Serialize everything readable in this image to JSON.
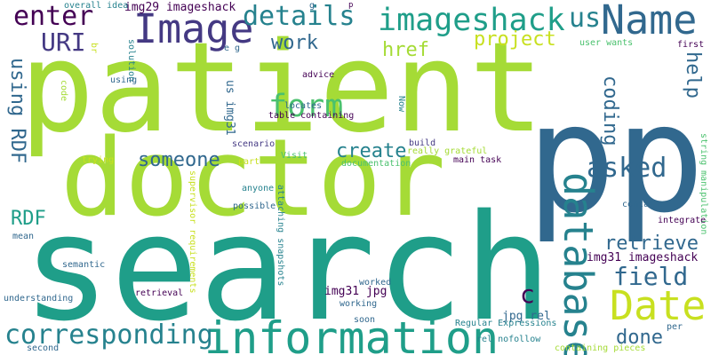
{
  "colors": {
    "background": "#ffffff",
    "lime": "#a5db36",
    "yellow_green": "#c8e020",
    "green": "#4ac16d",
    "teal": "#1f9e89",
    "teal_blue": "#26828e",
    "blue": "#31688e",
    "indigo": "#443983",
    "purple": "#440154"
  },
  "words": [
    {
      "text": "patient",
      "color": "#a5db36",
      "vertical": false
    },
    {
      "text": "search",
      "color": "#1f9e89",
      "vertical": false
    },
    {
      "text": "doctor",
      "color": "#a5db36",
      "vertical": false
    },
    {
      "text": "p",
      "color": "#31688e",
      "vertical": false
    },
    {
      "text": "p",
      "color": "#31688e",
      "vertical": false
    },
    {
      "text": "Image",
      "color": "#443983",
      "vertical": false
    },
    {
      "text": "Name",
      "color": "#31688e",
      "vertical": false
    },
    {
      "text": "information",
      "color": "#1f9e89",
      "vertical": false
    },
    {
      "text": "imageshack",
      "color": "#1f9e89",
      "vertical": false
    },
    {
      "text": "database",
      "color": "#26828e",
      "vertical": true
    },
    {
      "text": "Date",
      "color": "#c8e020",
      "vertical": false
    },
    {
      "text": "corresponding",
      "color": "#26828e",
      "vertical": false
    },
    {
      "text": "form",
      "color": "#4ac16d",
      "vertical": false
    },
    {
      "text": "details",
      "color": "#26828e",
      "vertical": false
    },
    {
      "text": "enter",
      "color": "#440154",
      "vertical": false
    },
    {
      "text": "us",
      "color": "#26828e",
      "vertical": false
    },
    {
      "text": "URI",
      "color": "#443983",
      "vertical": false
    },
    {
      "text": "project",
      "color": "#c8e020",
      "vertical": false
    },
    {
      "text": "work",
      "color": "#31688e",
      "vertical": false
    },
    {
      "text": "href",
      "color": "#a5db36",
      "vertical": false
    },
    {
      "text": "field",
      "color": "#31688e",
      "vertical": false
    },
    {
      "text": "asked",
      "color": "#31688e",
      "vertical": false
    },
    {
      "text": "create",
      "color": "#26828e",
      "vertical": false
    },
    {
      "text": "someone",
      "color": "#31688e",
      "vertical": false
    },
    {
      "text": "using RDF",
      "color": "#31688e",
      "vertical": true
    },
    {
      "text": "coding",
      "color": "#31688e",
      "vertical": true
    },
    {
      "text": "help",
      "color": "#31688e",
      "vertical": true
    },
    {
      "text": "RDF",
      "color": "#1f9e89",
      "vertical": false
    },
    {
      "text": "retrieve",
      "color": "#31688e",
      "vertical": false
    },
    {
      "text": "done",
      "color": "#31688e",
      "vertical": false
    },
    {
      "text": "c",
      "color": "#440154",
      "vertical": false
    },
    {
      "text": "img29 imageshack",
      "color": "#440154",
      "vertical": false
    },
    {
      "text": "img31 jpg",
      "color": "#440154",
      "vertical": false
    },
    {
      "text": "img31 imageshack",
      "color": "#440154",
      "vertical": false
    },
    {
      "text": "jpg rel",
      "color": "#31688e",
      "vertical": false
    },
    {
      "text": "us img31",
      "color": "#31688e",
      "vertical": true
    },
    {
      "text": "overall idea",
      "color": "#26828e",
      "vertical": false
    },
    {
      "text": "g",
      "color": "#31688e",
      "vertical": false
    },
    {
      "text": "e g",
      "color": "#31688e",
      "vertical": false
    },
    {
      "text": "p",
      "color": "#440154",
      "vertical": false
    },
    {
      "text": "br",
      "color": "#c8e020",
      "vertical": true
    },
    {
      "text": "solution",
      "color": "#26828e",
      "vertical": true
    },
    {
      "text": "user wants",
      "color": "#4ac16d",
      "vertical": false
    },
    {
      "text": "first",
      "color": "#440154",
      "vertical": false
    },
    {
      "text": "using",
      "color": "#31688e",
      "vertical": false
    },
    {
      "text": "advice",
      "color": "#440154",
      "vertical": false
    },
    {
      "text": "locates",
      "color": "#31688e",
      "vertical": false
    },
    {
      "text": "code",
      "color": "#a5db36",
      "vertical": true
    },
    {
      "text": "Now",
      "color": "#26828e",
      "vertical": true
    },
    {
      "text": "table containing",
      "color": "#440154",
      "vertical": false
    },
    {
      "text": "scenario",
      "color": "#443983",
      "vertical": false
    },
    {
      "text": "build",
      "color": "#443983",
      "vertical": false
    },
    {
      "text": "really grateful",
      "color": "#a5db36",
      "vertical": false
    },
    {
      "text": "main task",
      "color": "#440154",
      "vertical": false
    },
    {
      "text": "Visit",
      "color": "#4ac16d",
      "vertical": false
    },
    {
      "text": "documentation",
      "color": "#4ac16d",
      "vertical": false
    },
    {
      "text": "trying",
      "color": "#c8e020",
      "vertical": false
    },
    {
      "text": "part",
      "color": "#c8e020",
      "vertical": false
    },
    {
      "text": "string manipulation",
      "color": "#4ac16d",
      "vertical": true
    },
    {
      "text": "anyone",
      "color": "#26828e",
      "vertical": false
    },
    {
      "text": "contains",
      "color": "#31688e",
      "vertical": false
    },
    {
      "text": "integrate",
      "color": "#440154",
      "vertical": false
    },
    {
      "text": "possible",
      "color": "#31688e",
      "vertical": false
    },
    {
      "text": "supervisor requirements",
      "color": "#c8e020",
      "vertical": true
    },
    {
      "text": "attaching snapshots",
      "color": "#26828e",
      "vertical": true
    },
    {
      "text": "mean",
      "color": "#31688e",
      "vertical": false
    },
    {
      "text": "semantic",
      "color": "#31688e",
      "vertical": false
    },
    {
      "text": "worked",
      "color": "#31688e",
      "vertical": false
    },
    {
      "text": "retrieval",
      "color": "#440154",
      "vertical": false
    },
    {
      "text": "understanding",
      "color": "#31688e",
      "vertical": false
    },
    {
      "text": "working",
      "color": "#31688e",
      "vertical": false
    },
    {
      "text": "soon",
      "color": "#31688e",
      "vertical": false
    },
    {
      "text": "Regular Expressions",
      "color": "#26828e",
      "vertical": false
    },
    {
      "text": "rel nofollow",
      "color": "#26828e",
      "vertical": false
    },
    {
      "text": "per",
      "color": "#31688e",
      "vertical": false
    },
    {
      "text": "containing pieces",
      "color": "#a5db36",
      "vertical": false
    },
    {
      "text": "second",
      "color": "#31688e",
      "vertical": false
    }
  ]
}
